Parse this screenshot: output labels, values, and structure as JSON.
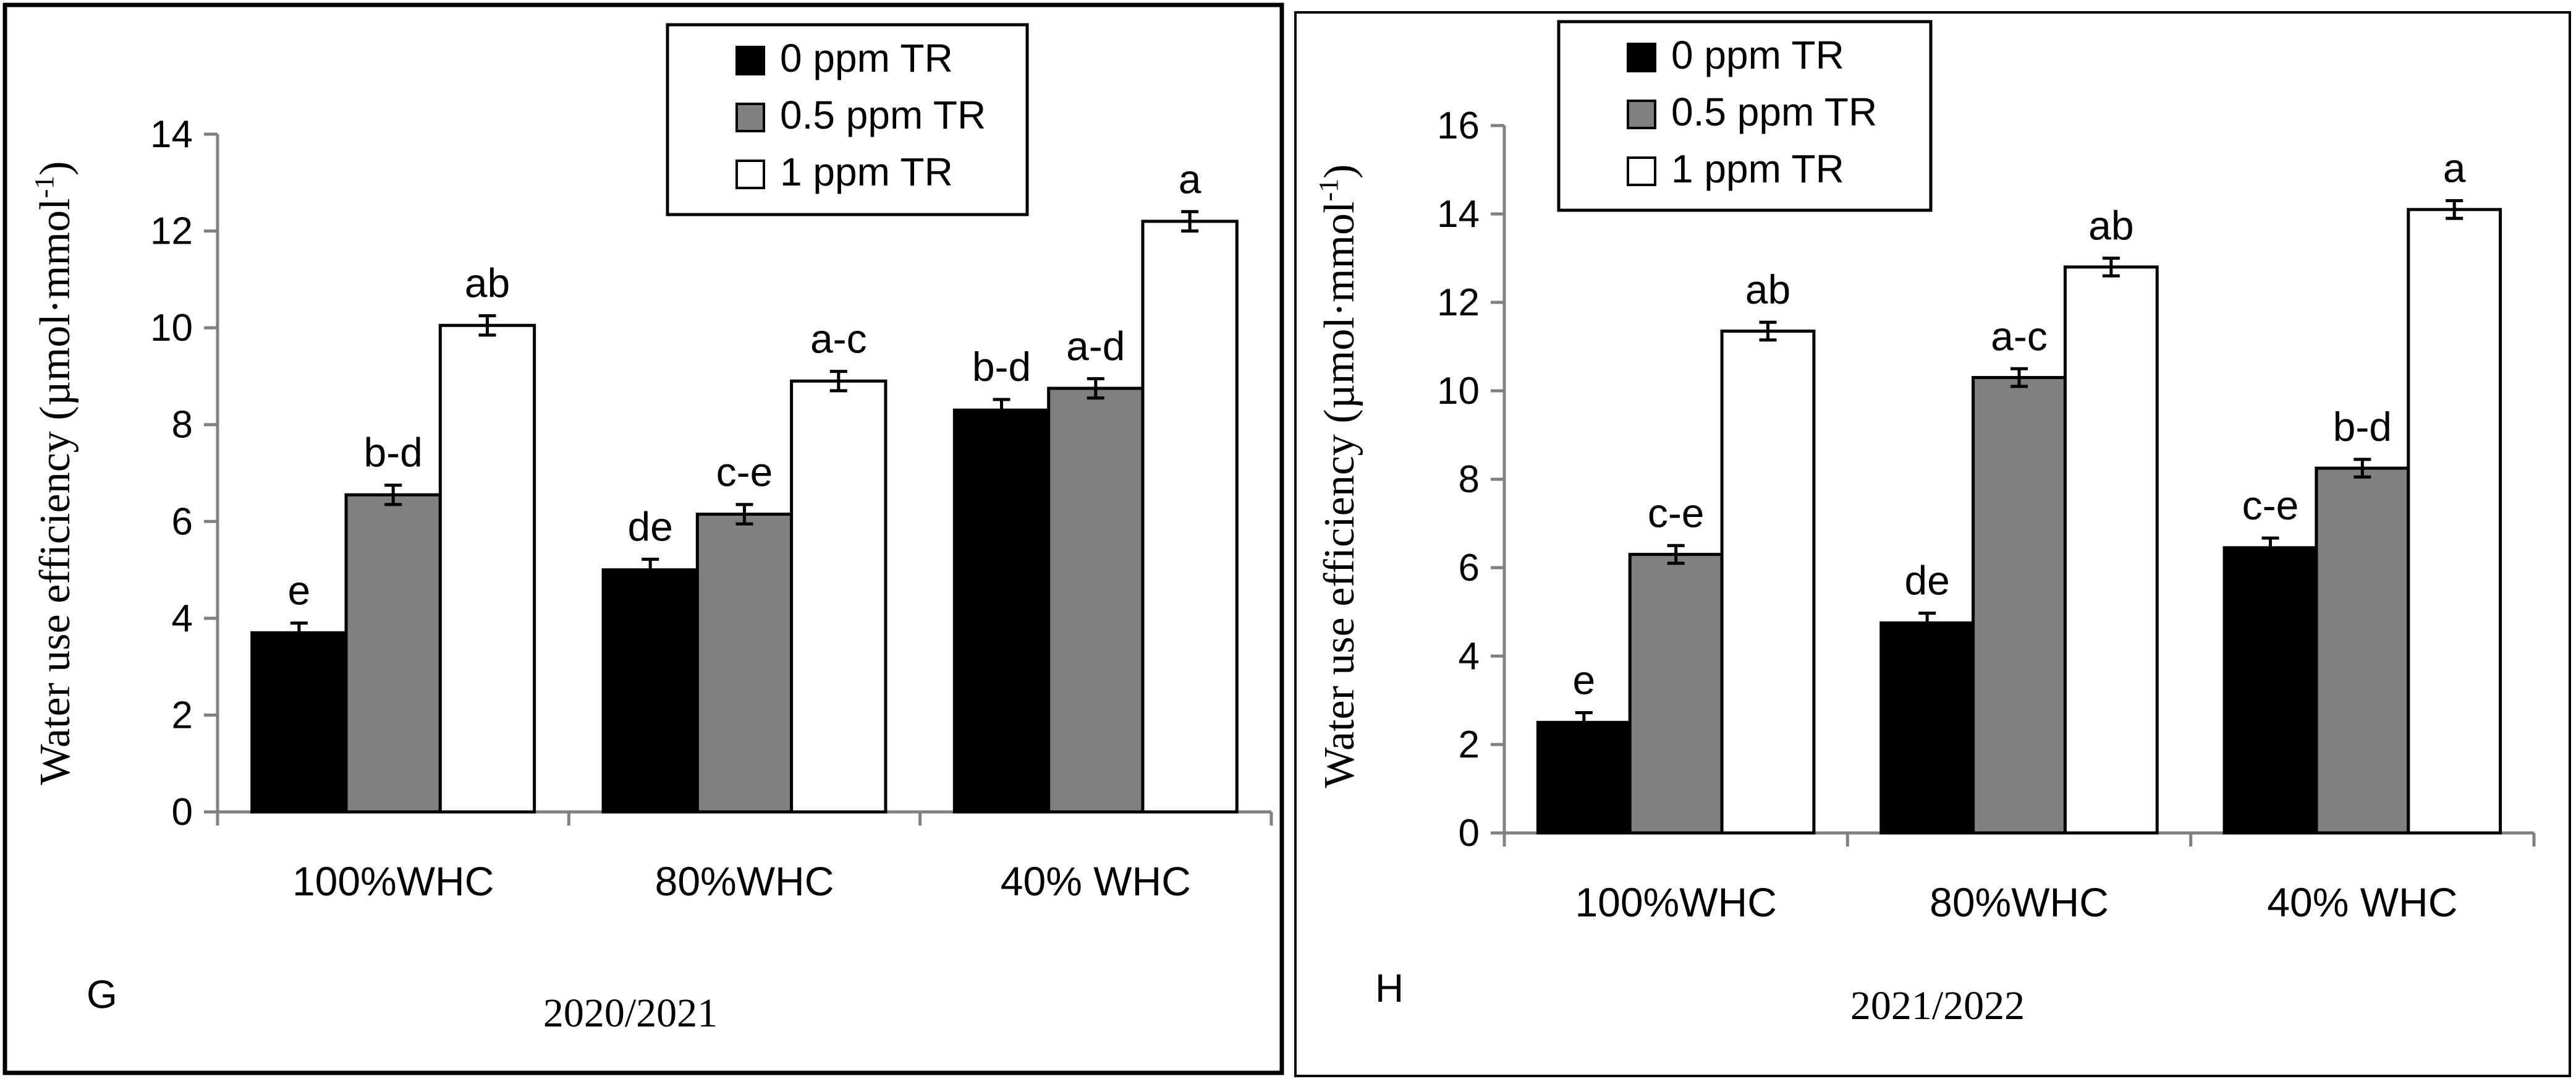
{
  "chart_data": [
    {
      "type": "bar",
      "panel_label": "G",
      "season": "2020/2021",
      "ylabel": "Water use efficiency (µmol·mmol",
      "ylabel_sup": "-1",
      "ylabel_close": ")",
      "ylim": [
        0,
        14
      ],
      "yticks": [
        0,
        2,
        4,
        6,
        8,
        10,
        12,
        14
      ],
      "categories": [
        "100%WHC",
        "80%WHC",
        "40% WHC"
      ],
      "series": [
        {
          "name": "0 ppm TR",
          "color": "#000000",
          "values": [
            3.7,
            5.0,
            8.3
          ],
          "errors": [
            0.2,
            0.22,
            0.22
          ],
          "letters": [
            "e",
            "de",
            "b-d"
          ]
        },
        {
          "name": "0.5 ppm TR",
          "color": "#808080",
          "values": [
            6.55,
            6.15,
            8.75
          ],
          "errors": [
            0.2,
            0.2,
            0.2
          ],
          "letters": [
            "b-d",
            "c-e",
            "a-d"
          ]
        },
        {
          "name": "1 ppm TR",
          "color": "#ffffff",
          "values": [
            10.05,
            8.9,
            12.2
          ],
          "errors": [
            0.2,
            0.2,
            0.2
          ],
          "letters": [
            "ab",
            "a-c",
            "a"
          ]
        }
      ],
      "legend": "top"
    },
    {
      "type": "bar",
      "panel_label": "H",
      "season": "2021/2022",
      "ylabel": "Water use efficiency (µmol·mmol",
      "ylabel_sup": "-1",
      "ylabel_close": ")",
      "ylim": [
        0,
        16
      ],
      "yticks": [
        0,
        2,
        4,
        6,
        8,
        10,
        12,
        14,
        16
      ],
      "categories": [
        "100%WHC",
        "80%WHC",
        "40% WHC"
      ],
      "series": [
        {
          "name": "0 ppm TR",
          "color": "#000000",
          "values": [
            2.5,
            4.75,
            6.45
          ],
          "errors": [
            0.22,
            0.22,
            0.22
          ],
          "letters": [
            "e",
            "de",
            "c-e"
          ]
        },
        {
          "name": "0.5 ppm TR",
          "color": "#808080",
          "values": [
            6.3,
            10.3,
            8.25
          ],
          "errors": [
            0.2,
            0.2,
            0.2
          ],
          "letters": [
            "c-e",
            "a-c",
            "b-d"
          ]
        },
        {
          "name": "1 ppm TR",
          "color": "#ffffff",
          "values": [
            11.35,
            12.8,
            14.1
          ],
          "errors": [
            0.2,
            0.2,
            0.2
          ],
          "letters": [
            "ab",
            "ab",
            "a"
          ]
        }
      ],
      "legend": "top"
    }
  ]
}
